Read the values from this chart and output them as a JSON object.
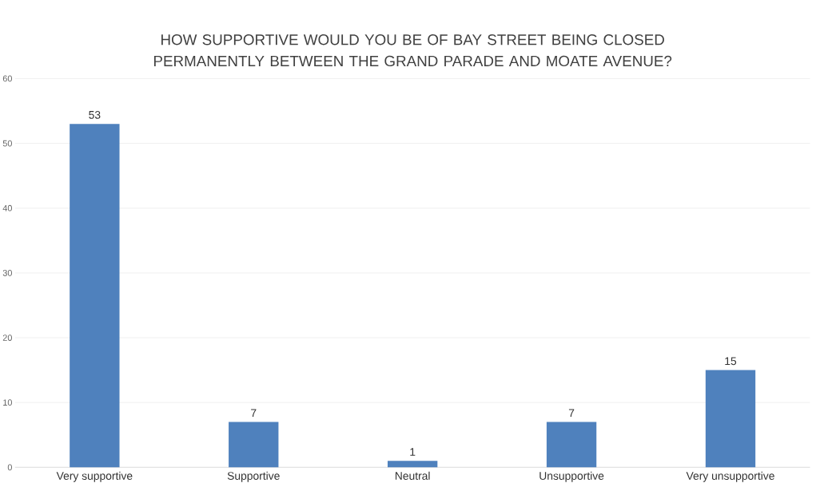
{
  "chart_data": {
    "type": "bar",
    "title": "HOW SUPPORTIVE WOULD YOU BE OF BAY STREET BEING CLOSED PERMANENTLY BETWEEN THE GRAND PARADE AND MOATE AVENUE?",
    "categories": [
      "Very supportive",
      "Supportive",
      "Neutral",
      "Unsupportive",
      "Very unsupportive"
    ],
    "values": [
      53,
      7,
      1,
      7,
      15
    ],
    "color": "#4f81bd",
    "ylim": [
      0,
      60
    ],
    "yticks": [
      0,
      10,
      20,
      30,
      40,
      50,
      60
    ],
    "grid": "y",
    "data_labels": true
  }
}
